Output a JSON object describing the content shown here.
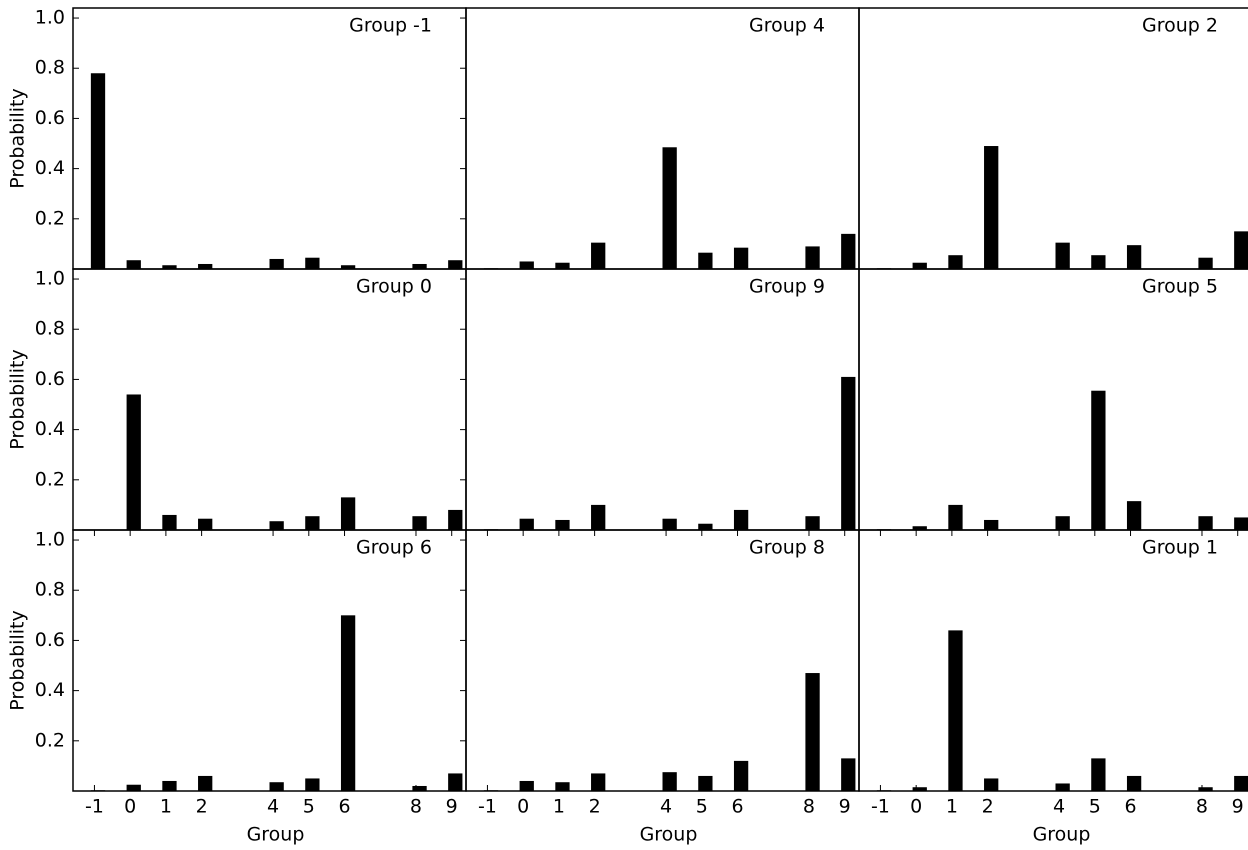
{
  "chart_data": [
    {
      "type": "bar",
      "title": "Group -1",
      "x": [
        -1,
        0,
        1,
        2,
        4,
        5,
        6,
        8,
        9
      ],
      "values": [
        0.78,
        0.035,
        0.015,
        0.02,
        0.04,
        0.045,
        0.015,
        0.02,
        0.035
      ],
      "color": "#000000",
      "xlim": [
        -1.6,
        9.4
      ],
      "ylim": [
        0,
        1.04
      ],
      "yticks": [
        0.2,
        0.4,
        0.6,
        0.8,
        {
          "value": 1,
          "label": "1.0"
        }
      ],
      "ylabel": "Probability"
    },
    {
      "type": "bar",
      "title": "Group 4",
      "x": [
        -1,
        0,
        1,
        2,
        4,
        5,
        6,
        8,
        9
      ],
      "values": [
        0.003,
        0.03,
        0.025,
        0.105,
        0.485,
        0.065,
        0.085,
        0.09,
        0.14
      ],
      "color": "#000000",
      "xlim": [
        -1.6,
        9.4
      ],
      "ylim": [
        0,
        1.04
      ]
    },
    {
      "type": "bar",
      "title": "Group 2",
      "x": [
        -1,
        0,
        1,
        2,
        4,
        5,
        6,
        8,
        9
      ],
      "values": [
        0.003,
        0.025,
        0.055,
        0.49,
        0.105,
        0.055,
        0.095,
        0.045,
        0.15
      ],
      "color": "#000000",
      "xlim": [
        -1.6,
        9.4
      ],
      "ylim": [
        0,
        1.04
      ]
    },
    {
      "type": "bar",
      "title": "Group 0",
      "x": [
        -1,
        0,
        1,
        2,
        4,
        5,
        6,
        8,
        9
      ],
      "values": [
        0,
        0.54,
        0.06,
        0.045,
        0.035,
        0.055,
        0.13,
        0.055,
        0.08
      ],
      "color": "#000000",
      "xlim": [
        -1.6,
        9.4
      ],
      "ylim": [
        0,
        1.04
      ],
      "yticks": [
        0.2,
        0.4,
        0.6,
        0.8,
        {
          "value": 1,
          "label": "1.0"
        }
      ],
      "ylabel": "Probability"
    },
    {
      "type": "bar",
      "title": "Group 9",
      "x": [
        -1,
        0,
        1,
        2,
        4,
        5,
        6,
        8,
        9
      ],
      "values": [
        0.003,
        0.045,
        0.04,
        0.1,
        0.045,
        0.025,
        0.08,
        0.055,
        0.61
      ],
      "color": "#000000",
      "xlim": [
        -1.6,
        9.4
      ],
      "ylim": [
        0,
        1.04
      ]
    },
    {
      "type": "bar",
      "title": "Group 5",
      "x": [
        -1,
        0,
        1,
        2,
        4,
        5,
        6,
        8,
        9
      ],
      "values": [
        0.003,
        0.015,
        0.1,
        0.04,
        0.055,
        0.555,
        0.115,
        0.055,
        0.05
      ],
      "color": "#000000",
      "xlim": [
        -1.6,
        9.4
      ],
      "ylim": [
        0,
        1.04
      ]
    },
    {
      "type": "bar",
      "title": "Group 6",
      "x": [
        -1,
        0,
        1,
        2,
        4,
        5,
        6,
        8,
        9
      ],
      "values": [
        0.003,
        0.025,
        0.04,
        0.06,
        0.035,
        0.05,
        0.7,
        0.02,
        0.07
      ],
      "color": "#000000",
      "xlim": [
        -1.6,
        9.4
      ],
      "ylim": [
        0,
        1.04
      ],
      "yticks": [
        0.2,
        0.4,
        0.6,
        0.8,
        {
          "value": 1,
          "label": "1.0"
        }
      ],
      "ylabel": "Probability",
      "xticks": [
        -1,
        0,
        1,
        2,
        4,
        5,
        6,
        8,
        9
      ],
      "xlabel": "Group"
    },
    {
      "type": "bar",
      "title": "Group 8",
      "x": [
        -1,
        0,
        1,
        2,
        4,
        5,
        6,
        8,
        9
      ],
      "values": [
        0.003,
        0.04,
        0.035,
        0.07,
        0.075,
        0.06,
        0.12,
        0.47,
        0.13
      ],
      "color": "#000000",
      "xlim": [
        -1.6,
        9.4
      ],
      "ylim": [
        0,
        1.04
      ],
      "xticks": [
        -1,
        0,
        1,
        2,
        4,
        5,
        6,
        8,
        9
      ],
      "xlabel": "Group"
    },
    {
      "type": "bar",
      "title": "Group 1",
      "x": [
        -1,
        0,
        1,
        2,
        4,
        5,
        6,
        8,
        9
      ],
      "values": [
        0.003,
        0.015,
        0.64,
        0.05,
        0.03,
        0.13,
        0.06,
        0.015,
        0.06
      ],
      "color": "#000000",
      "xlim": [
        -1.6,
        9.4
      ],
      "ylim": [
        0,
        1.04
      ],
      "xticks": [
        -1,
        0,
        1,
        2,
        4,
        5,
        6,
        8,
        9
      ],
      "xlabel": "Group"
    }
  ]
}
